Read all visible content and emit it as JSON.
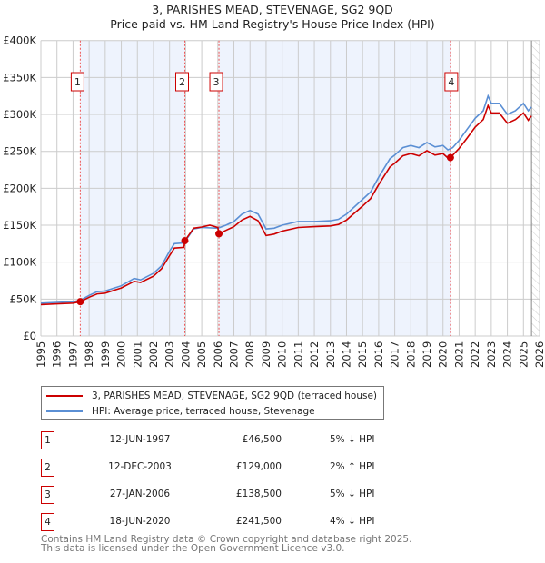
{
  "chart_data": {
    "type": "line",
    "title": "3, PARISHES MEAD, STEVENAGE, SG2 9QD",
    "subtitle": "Price paid vs. HM Land Registry's House Price Index (HPI)",
    "xlim": [
      1995,
      2026
    ],
    "ylim": [
      0,
      400000
    ],
    "y_ticks": [
      {
        "v": 0,
        "label": "£0"
      },
      {
        "v": 50000,
        "label": "£50K"
      },
      {
        "v": 100000,
        "label": "£100K"
      },
      {
        "v": 150000,
        "label": "£150K"
      },
      {
        "v": 200000,
        "label": "£200K"
      },
      {
        "v": 250000,
        "label": "£250K"
      },
      {
        "v": 300000,
        "label": "£300K"
      },
      {
        "v": 350000,
        "label": "£350K"
      },
      {
        "v": 400000,
        "label": "£400K"
      }
    ],
    "x_ticks": [
      "1995",
      "1996",
      "1997",
      "1998",
      "1999",
      "2000",
      "2001",
      "2002",
      "2003",
      "2004",
      "2005",
      "2006",
      "2007",
      "2008",
      "2009",
      "2010",
      "2011",
      "2012",
      "2013",
      "2014",
      "2015",
      "2016",
      "2017",
      "2018",
      "2019",
      "2020",
      "2021",
      "2022",
      "2023",
      "2024",
      "2025",
      "2026"
    ],
    "grid": true,
    "legend_placement": "below",
    "series": [
      {
        "name": "3, PARISHES MEAD, STEVENAGE, SG2 9QD (terraced house)",
        "color": "#cc0000",
        "x": [
          1995,
          1996,
          1997,
          1997.45,
          1998,
          1998.5,
          1999,
          2000,
          2000.8,
          2001.2,
          2002,
          2002.5,
          2003,
          2003.3,
          2003.9,
          2003.95,
          2004.5,
          2005,
          2005.5,
          2006,
          2006.07,
          2006.5,
          2007,
          2007.5,
          2008,
          2008.5,
          2009,
          2009.5,
          2010,
          2011,
          2012,
          2013,
          2013.5,
          2014,
          2015,
          2015.5,
          2016,
          2016.7,
          2017,
          2017.5,
          2018,
          2018.5,
          2019,
          2019.5,
          2020,
          2020.3,
          2020.46,
          2021,
          2021.5,
          2022,
          2022.5,
          2022.8,
          2023,
          2023.5,
          2024,
          2024.5,
          2025,
          2025.3,
          2025.5
        ],
        "y": [
          42500,
          43500,
          44500,
          46500,
          52500,
          57000,
          58000,
          65000,
          74000,
          72500,
          81000,
          91000,
          109000,
          119000,
          120000,
          129000,
          146000,
          147500,
          150000,
          147000,
          138500,
          143000,
          148000,
          157000,
          162000,
          156000,
          136000,
          138000,
          142000,
          147000,
          148000,
          149000,
          151000,
          157000,
          176000,
          186000,
          205000,
          229000,
          234000,
          244000,
          247000,
          244000,
          251000,
          245000,
          247000,
          241000,
          241500,
          254000,
          268000,
          283000,
          293000,
          312000,
          302000,
          302000,
          288000,
          293000,
          302000,
          292000,
          298000
        ]
      },
      {
        "name": "HPI: Average price, terraced house, Stevenage",
        "color": "#5b8fd4",
        "x": [
          1995,
          1996,
          1997,
          1997.45,
          1998,
          1998.5,
          1999,
          2000,
          2000.8,
          2001.2,
          2002,
          2002.5,
          2003,
          2003.3,
          2003.9,
          2004.5,
          2005,
          2006,
          2006.5,
          2007,
          2007.5,
          2008,
          2008.5,
          2009,
          2009.5,
          2010,
          2011,
          2012,
          2013,
          2013.5,
          2014,
          2015,
          2015.5,
          2016,
          2016.7,
          2017,
          2017.5,
          2018,
          2018.5,
          2019,
          2019.5,
          2020,
          2020.3,
          2020.6,
          2021,
          2021.5,
          2022,
          2022.5,
          2022.8,
          2023,
          2023.5,
          2024,
          2024.5,
          2025,
          2025.3,
          2025.5
        ],
        "y": [
          44500,
          45500,
          46500,
          48500,
          55000,
          60000,
          61000,
          68000,
          78000,
          76000,
          85000,
          95000,
          115000,
          125000,
          126000,
          145000,
          147000,
          146000,
          150000,
          155000,
          165000,
          170000,
          165000,
          145000,
          146000,
          150000,
          155000,
          155000,
          156000,
          158000,
          165000,
          185000,
          195000,
          215000,
          240000,
          245000,
          255000,
          258000,
          255000,
          262000,
          256000,
          258000,
          252000,
          255000,
          265000,
          280000,
          295000,
          305000,
          325000,
          315000,
          315000,
          300000,
          305000,
          315000,
          305000,
          310000
        ]
      }
    ],
    "sales": [
      {
        "id": "1",
        "x": 1997.45,
        "y": 46500
      },
      {
        "id": "2",
        "x": 2003.95,
        "y": 129000
      },
      {
        "id": "3",
        "x": 2006.07,
        "y": 138500
      },
      {
        "id": "4",
        "x": 2020.46,
        "y": 241500
      }
    ],
    "shaded_ranges": [
      [
        1997.45,
        2003.95
      ],
      [
        2006.07,
        2020.46
      ]
    ],
    "forecast_hatch_from": 2025.5
  },
  "legend": {
    "property": "3, PARISHES MEAD, STEVENAGE, SG2 9QD (terraced house)",
    "hpi": "HPI: Average price, terraced house, Stevenage"
  },
  "transactions": [
    {
      "id": "1",
      "date": "12-JUN-1997",
      "price": "£46,500",
      "hpi": "5% ↓ HPI"
    },
    {
      "id": "2",
      "date": "12-DEC-2003",
      "price": "£129,000",
      "hpi": "2% ↑ HPI"
    },
    {
      "id": "3",
      "date": "27-JAN-2006",
      "price": "£138,500",
      "hpi": "5% ↓ HPI"
    },
    {
      "id": "4",
      "date": "18-JUN-2020",
      "price": "£241,500",
      "hpi": "4% ↓ HPI"
    }
  ],
  "footer": {
    "line1": "Contains HM Land Registry data © Crown copyright and database right 2025.",
    "line2": "This data is licensed under the Open Government Licence v3.0."
  },
  "colors": {
    "property": "#cc0000",
    "hpi": "#5b8fd4",
    "shade": "#eef3fd"
  }
}
